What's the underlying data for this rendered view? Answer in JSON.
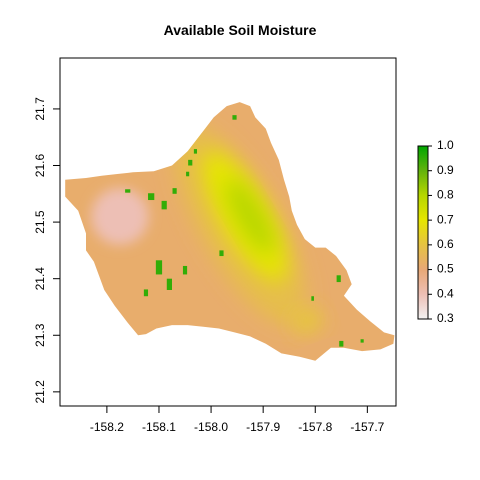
{
  "title": "Available Soil Moisture",
  "chart_data": {
    "type": "heatmap",
    "title": "Available Soil Moisture",
    "xlabel": "",
    "ylabel": "",
    "xlim": [
      -158.29,
      -157.645
    ],
    "ylim": [
      21.175,
      21.79
    ],
    "x_ticks": [
      -158.2,
      -158.1,
      -158.0,
      -157.9,
      -157.8,
      -157.7
    ],
    "x_tick_labels": [
      "-158.2",
      "-158.1",
      "-158.0",
      "-157.9",
      "-157.8",
      "-157.7"
    ],
    "y_ticks": [
      21.2,
      21.3,
      21.4,
      21.5,
      21.6,
      21.7
    ],
    "y_tick_labels": [
      "21.2",
      "21.3",
      "21.4",
      "21.5",
      "21.6",
      "21.7"
    ],
    "legend": {
      "placement": "right",
      "min": 0.3,
      "max": 1.0,
      "ticks": [
        0.3,
        0.4,
        0.5,
        0.6,
        0.7,
        0.8,
        0.9,
        1.0
      ],
      "tick_labels": [
        "0.3",
        "0.4",
        "0.5",
        "0.6",
        "0.7",
        "0.8",
        "0.9",
        "1.0"
      ],
      "colors": [
        "#f2f2f2",
        "#edbfb5",
        "#e8a876",
        "#e6c342",
        "#e6e600",
        "#b6d600",
        "#63b30d",
        "#00a600"
      ]
    },
    "grid": false,
    "island_outline": [
      [
        -158.28,
        21.575
      ],
      [
        -158.24,
        21.578
      ],
      [
        -158.21,
        21.582
      ],
      [
        -158.18,
        21.585
      ],
      [
        -158.15,
        21.588
      ],
      [
        -158.11,
        21.59
      ],
      [
        -158.075,
        21.6
      ],
      [
        -158.045,
        21.625
      ],
      [
        -158.02,
        21.655
      ],
      [
        -157.995,
        21.685
      ],
      [
        -157.97,
        21.705
      ],
      [
        -157.945,
        21.712
      ],
      [
        -157.925,
        21.705
      ],
      [
        -157.915,
        21.685
      ],
      [
        -157.895,
        21.665
      ],
      [
        -157.885,
        21.64
      ],
      [
        -157.87,
        21.61
      ],
      [
        -157.86,
        21.575
      ],
      [
        -157.85,
        21.545
      ],
      [
        -157.845,
        21.52
      ],
      [
        -157.835,
        21.495
      ],
      [
        -157.82,
        21.47
      ],
      [
        -157.8,
        21.455
      ],
      [
        -157.78,
        21.455
      ],
      [
        -157.76,
        21.44
      ],
      [
        -157.74,
        21.415
      ],
      [
        -157.73,
        21.39
      ],
      [
        -157.745,
        21.37
      ],
      [
        -157.72,
        21.345
      ],
      [
        -157.695,
        21.325
      ],
      [
        -157.668,
        21.305
      ],
      [
        -157.648,
        21.3
      ],
      [
        -157.65,
        21.285
      ],
      [
        -157.675,
        21.275
      ],
      [
        -157.71,
        21.272
      ],
      [
        -157.745,
        21.278
      ],
      [
        -157.77,
        21.278
      ],
      [
        -157.8,
        21.255
      ],
      [
        -157.83,
        21.262
      ],
      [
        -157.865,
        21.268
      ],
      [
        -157.895,
        21.285
      ],
      [
        -157.925,
        21.298
      ],
      [
        -157.955,
        21.305
      ],
      [
        -157.985,
        21.312
      ],
      [
        -158.015,
        21.315
      ],
      [
        -158.045,
        21.318
      ],
      [
        -158.075,
        21.318
      ],
      [
        -158.105,
        21.312
      ],
      [
        -158.125,
        21.302
      ],
      [
        -158.14,
        21.3
      ],
      [
        -158.16,
        21.322
      ],
      [
        -158.185,
        21.352
      ],
      [
        -158.205,
        21.38
      ],
      [
        -158.215,
        21.405
      ],
      [
        -158.225,
        21.43
      ],
      [
        -158.24,
        21.45
      ],
      [
        -158.24,
        21.48
      ],
      [
        -158.255,
        21.52
      ],
      [
        -158.28,
        21.545
      ]
    ],
    "moisture_zones": [
      {
        "lon": -158.175,
        "lat": 21.51,
        "rx": 0.055,
        "ry": 0.05,
        "rotate": 0,
        "value": 0.4
      },
      {
        "lon": -157.945,
        "lat": 21.495,
        "rx": 0.075,
        "ry": 0.2,
        "rotate": -30,
        "value": 0.58
      },
      {
        "lon": -157.935,
        "lat": 21.51,
        "rx": 0.045,
        "ry": 0.13,
        "rotate": -30,
        "value": 0.7
      },
      {
        "lon": -157.925,
        "lat": 21.51,
        "rx": 0.025,
        "ry": 0.075,
        "rotate": -30,
        "value": 0.8
      },
      {
        "lon": -157.815,
        "lat": 21.325,
        "rx": 0.03,
        "ry": 0.02,
        "rotate": -20,
        "value": 0.62
      }
    ],
    "high_value_patches": [
      [
        -158.115,
        21.545,
        0.012,
        0.012,
        0.95
      ],
      [
        -158.09,
        21.53,
        0.01,
        0.015,
        0.95
      ],
      [
        -158.07,
        21.555,
        0.008,
        0.01,
        0.95
      ],
      [
        -158.16,
        21.555,
        0.01,
        0.006,
        0.95
      ],
      [
        -158.04,
        21.605,
        0.008,
        0.01,
        0.95
      ],
      [
        -158.03,
        21.625,
        0.006,
        0.008,
        0.95
      ],
      [
        -158.045,
        21.585,
        0.006,
        0.008,
        0.95
      ],
      [
        -157.955,
        21.685,
        0.008,
        0.008,
        0.95
      ],
      [
        -158.1,
        21.42,
        0.012,
        0.025,
        0.95
      ],
      [
        -158.08,
        21.39,
        0.01,
        0.02,
        0.95
      ],
      [
        -158.05,
        21.415,
        0.008,
        0.015,
        0.95
      ],
      [
        -158.125,
        21.375,
        0.008,
        0.012,
        0.95
      ],
      [
        -157.755,
        21.4,
        0.008,
        0.012,
        0.95
      ],
      [
        -157.805,
        21.365,
        0.005,
        0.008,
        0.95
      ],
      [
        -157.75,
        21.285,
        0.008,
        0.01,
        0.95
      ],
      [
        -157.71,
        21.29,
        0.006,
        0.006,
        0.95
      ],
      [
        -157.98,
        21.445,
        0.008,
        0.01,
        0.95
      ]
    ]
  }
}
